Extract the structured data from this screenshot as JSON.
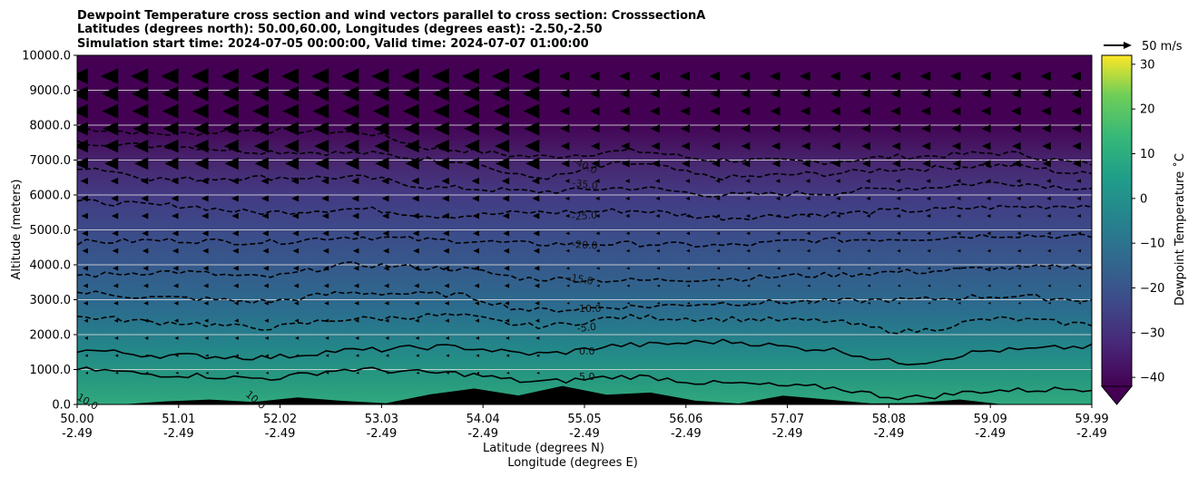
{
  "chart_data": {
    "type": "heatmap",
    "title_lines": [
      "Dewpoint Temperature cross section and wind vectors parallel to cross section: CrosssectionA",
      "Latitudes (degrees north): 50.00,60.00, Longitudes (degrees east): -2.50,-2.50",
      "Simulation start time: 2024-07-05 00:00:00, Valid time: 2024-07-07 01:00:00"
    ],
    "ylabel": "Altitude (meters)",
    "xlabel_lat": "Latitude (degrees N)",
    "xlabel_lon": "Longitude (degrees E)",
    "ylim": [
      0,
      10000
    ],
    "yticks": [
      "0.0",
      "1000.0",
      "2000.0",
      "3000.0",
      "4000.0",
      "5000.0",
      "6000.0",
      "7000.0",
      "8000.0",
      "9000.0",
      "10000.0"
    ],
    "xticks": [
      {
        "lat": "50.00",
        "lon": "-2.49"
      },
      {
        "lat": "51.01",
        "lon": "-2.49"
      },
      {
        "lat": "52.02",
        "lon": "-2.49"
      },
      {
        "lat": "53.03",
        "lon": "-2.49"
      },
      {
        "lat": "54.04",
        "lon": "-2.49"
      },
      {
        "lat": "55.05",
        "lon": "-2.49"
      },
      {
        "lat": "56.06",
        "lon": "-2.49"
      },
      {
        "lat": "57.07",
        "lon": "-2.49"
      },
      {
        "lat": "58.08",
        "lon": "-2.49"
      },
      {
        "lat": "59.09",
        "lon": "-2.49"
      },
      {
        "lat": "59.99",
        "lon": "-2.49"
      }
    ],
    "grid": true,
    "colorbar": {
      "label": "Dewpoint Temperature ˚C",
      "ticks": [
        "−40",
        "−30",
        "−20",
        "−10",
        "0",
        "10",
        "20",
        "30"
      ],
      "range": [
        -42,
        32
      ],
      "colormap": "viridis",
      "extend": "min"
    },
    "quiver_key": "50 m/s",
    "contour_labels": [
      "-40.0",
      "-35.0",
      "-25.0",
      "-20.0",
      "-15.0",
      "-10.0",
      "-5.0",
      "0.0",
      "5.0",
      "10.0",
      "-10.0",
      "10.0"
    ],
    "contours": [
      {
        "level": -40,
        "style": "dashed",
        "alt": [
          7900,
          7750,
          7850,
          7800,
          7300,
          7100,
          7250,
          7000,
          6950,
          7100,
          7200,
          6900
        ]
      },
      {
        "level": -35,
        "style": "dashed",
        "alt": [
          7500,
          7400,
          7250,
          7200,
          7000,
          6500,
          6900,
          6500,
          6600,
          6750,
          6850,
          6600
        ]
      },
      {
        "level": -30,
        "style": "dashed",
        "alt": [
          6800,
          6450,
          6500,
          6500,
          6200,
          6100,
          6200,
          6000,
          6050,
          6200,
          6350,
          6200
        ]
      },
      {
        "level": -25,
        "style": "dashed",
        "alt": [
          5800,
          5700,
          5500,
          5600,
          5400,
          5500,
          5550,
          5350,
          5450,
          5550,
          5650,
          5700
        ]
      },
      {
        "level": -20,
        "style": "dashed",
        "alt": [
          4650,
          4700,
          4650,
          4800,
          4700,
          4600,
          4600,
          4550,
          4700,
          4750,
          4850,
          4800
        ]
      },
      {
        "level": -15,
        "style": "dashed",
        "alt": [
          3700,
          3800,
          3650,
          4000,
          3900,
          3600,
          3550,
          3600,
          3700,
          3800,
          3900,
          3950
        ]
      },
      {
        "level": -10,
        "style": "dashed",
        "alt": [
          3200,
          3050,
          2950,
          3200,
          3150,
          2700,
          2800,
          2900,
          2950,
          3000,
          3100,
          3000
        ]
      },
      {
        "level": -5,
        "style": "dashed",
        "alt": [
          2500,
          2350,
          2200,
          2450,
          2550,
          2250,
          2500,
          2450,
          2400,
          2100,
          2450,
          2300
        ]
      },
      {
        "level": 0,
        "style": "solid",
        "alt": [
          1550,
          1400,
          1350,
          1550,
          1650,
          1450,
          1700,
          1800,
          1600,
          1200,
          1550,
          1650
        ]
      },
      {
        "level": 5,
        "style": "solid",
        "alt": [
          1000,
          850,
          750,
          1000,
          900,
          650,
          800,
          600,
          500,
          200,
          400,
          450
        ]
      }
    ],
    "terrain_alt": [
      0,
      0,
      60,
      140,
      80,
      220,
      120,
      40,
      300,
      450,
      250,
      520,
      300,
      350,
      100,
      50,
      280,
      120,
      0,
      60,
      140,
      0,
      0,
      0
    ]
  }
}
